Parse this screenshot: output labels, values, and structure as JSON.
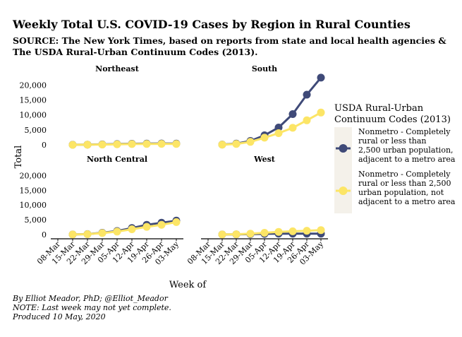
{
  "title": "Weekly Total U.S. COVID-19 Cases by Region in Rural Counties",
  "subtitle": [
    "SOURCE: The New York Times, based on reports from state and local health agencies &",
    "The USDA Rural-Urban Continuum Codes (2013)."
  ],
  "caption": [
    "By Elliot Meador, PhD; @Elliot_Meador",
    "NOTE: Last week may not yet complete.",
    "Produced 10 May, 2020"
  ],
  "colors": {
    "nonmetro_adjacent": "#3f4a78",
    "nonmetro_not_adjacent": "#fce566",
    "panel_bg": "#ffffff",
    "legend_key_bg": "#f4f1ea"
  },
  "chart_data": {
    "type": "line",
    "xlabel": "Week of",
    "ylabel": "Total",
    "ylim": [
      0,
      22000
    ],
    "yticks": [
      0,
      5000,
      10000,
      15000,
      20000
    ],
    "ytick_labels": [
      "0",
      "5,000",
      "10,000",
      "15,000",
      "20,000"
    ],
    "categories": [
      "08-Mar",
      "15-Mar",
      "22-Mar",
      "29-Mar",
      "05-Apr",
      "12-Apr",
      "19-Apr",
      "26-Apr",
      "03-May"
    ],
    "legend": {
      "title": [
        "USDA Rural-Urban",
        "Continuum Codes (2013)"
      ],
      "placement": "right",
      "entries": [
        {
          "lines": [
            "Nonmetro - Completely",
            "rural or less than",
            "2,500 urban population,",
            "adjacent to a metro area"
          ]
        },
        {
          "lines": [
            "Nonmetro - Completely",
            "rural or less than 2,500",
            "urban population, not",
            "adjacent to a metro area"
          ]
        }
      ]
    },
    "facets": [
      {
        "name": "Northeast",
        "series": [
          {
            "name": "Nonmetro - Completely rural or less than 2,500 urban population, adjacent to a metro area",
            "values": [
              null,
              20,
              60,
              150,
              250,
              350,
              400,
              450,
              400
            ]
          },
          {
            "name": "Nonmetro - Completely rural or less than 2,500 urban population, not adjacent to a metro area",
            "values": [
              null,
              10,
              40,
              100,
              180,
              250,
              300,
              320,
              300
            ]
          }
        ]
      },
      {
        "name": "South",
        "series": [
          {
            "name": "Nonmetro - Completely rural or less than 2,500 urban population, adjacent to a metro area",
            "values": [
              null,
              100,
              400,
              1300,
              3200,
              5800,
              10300,
              16800,
              22500
            ]
          },
          {
            "name": "Nonmetro - Completely rural or less than 2,500 urban population, not adjacent to a metro area",
            "values": [
              null,
              80,
              300,
              1000,
              2400,
              3900,
              5700,
              8200,
              10800
            ]
          }
        ]
      },
      {
        "name": "North Central",
        "series": [
          {
            "name": "Nonmetro - Completely rural or less than 2,500 urban population, adjacent to a metro area",
            "values": [
              null,
              20,
              150,
              600,
              1200,
              2200,
              3300,
              4000,
              4700
            ]
          },
          {
            "name": "Nonmetro - Completely rural or less than 2,500 urban population, not adjacent to a metro area",
            "values": [
              null,
              15,
              120,
              500,
              1000,
              1800,
              2600,
              3300,
              4200
            ]
          }
        ]
      },
      {
        "name": "West",
        "series": [
          {
            "name": "Nonmetro - Completely rural or less than 2,500 urban population, adjacent to a metro area",
            "values": [
              null,
              20,
              60,
              150,
              250,
              300,
              300,
              300,
              320
            ]
          },
          {
            "name": "Nonmetro - Completely rural or less than 2,500 urban population, not adjacent to a metro area",
            "values": [
              null,
              20,
              100,
              300,
              600,
              900,
              1100,
              1300,
              1500
            ]
          }
        ]
      }
    ]
  }
}
